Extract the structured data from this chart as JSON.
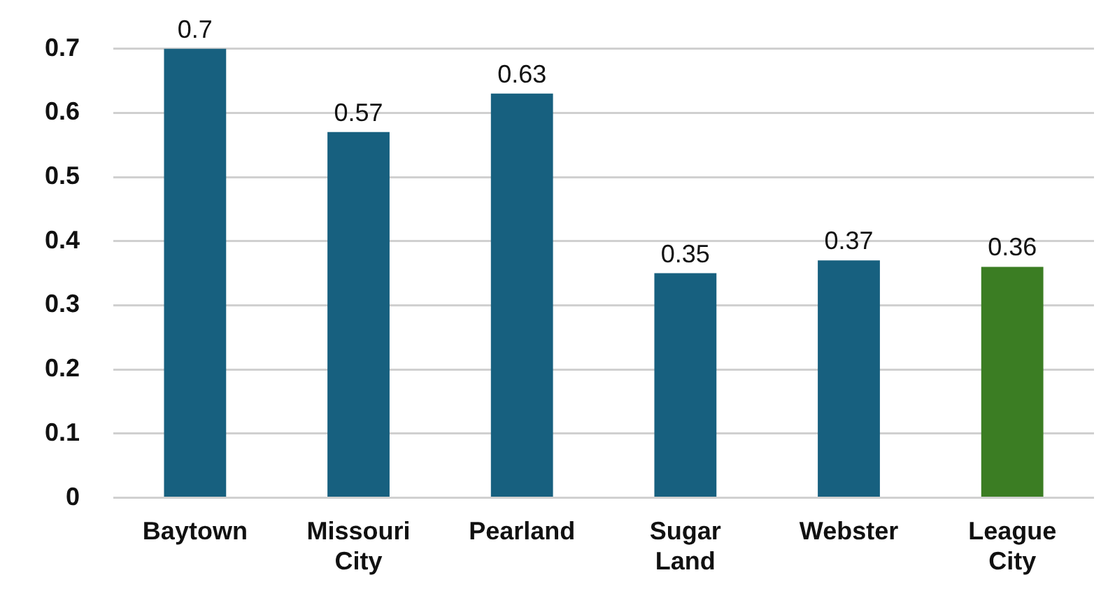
{
  "chart_data": {
    "type": "bar",
    "categories": [
      "Baytown",
      "Missouri City",
      "Pearland",
      "Sugar Land",
      "Webster",
      "League City"
    ],
    "values": [
      0.7,
      0.57,
      0.63,
      0.35,
      0.37,
      0.36
    ],
    "colors": [
      "#17607f",
      "#17607f",
      "#17607f",
      "#17607f",
      "#17607f",
      "#3b7d23"
    ],
    "ylim": [
      0,
      0.7
    ],
    "yticks": [
      0,
      0.1,
      0.2,
      0.3,
      0.4,
      0.5,
      0.6,
      0.7
    ],
    "grid": "y",
    "data_labels": true,
    "legend": false
  }
}
